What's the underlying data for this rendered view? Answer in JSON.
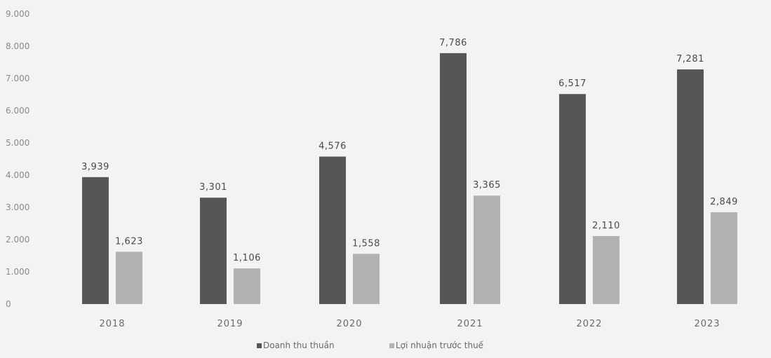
{
  "colors": {
    "background": "#f3f3f1",
    "series_1": "#565656",
    "series_2": "#b2b2b2"
  },
  "chart_data": {
    "type": "bar",
    "categories": [
      "2018",
      "2019",
      "2020",
      "2021",
      "2022",
      "2023"
    ],
    "series": [
      {
        "name": "Doanh thu thuần",
        "values": [
          3939,
          3301,
          4576,
          7786,
          6517,
          7281
        ],
        "labels": [
          "3,939",
          "3,301",
          "4,576",
          "7,786",
          "6,517",
          "7,281"
        ]
      },
      {
        "name": "Lợi nhuận trước thuế",
        "values": [
          1623,
          1106,
          1558,
          3365,
          2110,
          2849
        ],
        "labels": [
          "1,623",
          "1,106",
          "1,558",
          "3,365",
          "2,110",
          "2,849"
        ]
      }
    ],
    "y_ticks": [
      0,
      1000,
      2000,
      3000,
      4000,
      5000,
      6000,
      7000,
      8000,
      9000
    ],
    "y_tick_labels": [
      "0",
      "1.000",
      "2.000",
      "3.000",
      "4.000",
      "5.000",
      "6.000",
      "7.000",
      "8.000",
      "9.000"
    ],
    "ylim": [
      0,
      9000
    ],
    "grid": false,
    "legend_position": "bottom-center"
  }
}
